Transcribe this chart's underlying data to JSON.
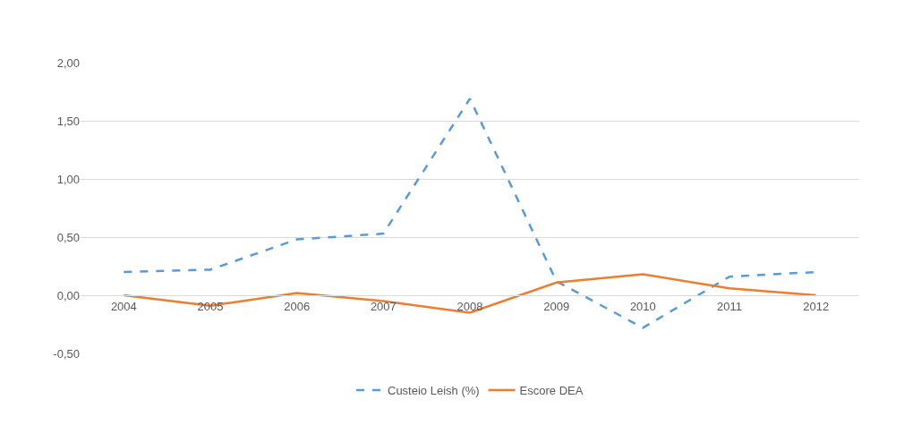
{
  "chart_data": {
    "type": "line",
    "categories": [
      "2004",
      "2005",
      "2006",
      "2007",
      "2008",
      "2009",
      "2010",
      "2011",
      "2012"
    ],
    "series": [
      {
        "name": "Custeio Leish (%)",
        "color": "#5b9bd5",
        "line_style": "dashed",
        "values": [
          0.2,
          0.22,
          0.48,
          0.53,
          1.69,
          0.12,
          -0.28,
          0.16,
          0.2
        ]
      },
      {
        "name": "Escore DEA",
        "color": "#ed7d31",
        "line_style": "solid",
        "values": [
          0.0,
          -0.09,
          0.02,
          -0.05,
          -0.15,
          0.11,
          0.18,
          0.06,
          0.0
        ]
      }
    ],
    "ylim": [
      -0.5,
      2.0
    ],
    "yticks": [
      {
        "value": -0.5,
        "label": "-0,50"
      },
      {
        "value": 0,
        "label": "0,00"
      },
      {
        "value": 0.5,
        "label": "0,50"
      },
      {
        "value": 1.0,
        "label": "1,00"
      },
      {
        "value": 1.5,
        "label": "1,50"
      },
      {
        "value": 2.0,
        "label": "2,00"
      }
    ],
    "grid": "y",
    "legend": "bottom",
    "marker": "none"
  }
}
